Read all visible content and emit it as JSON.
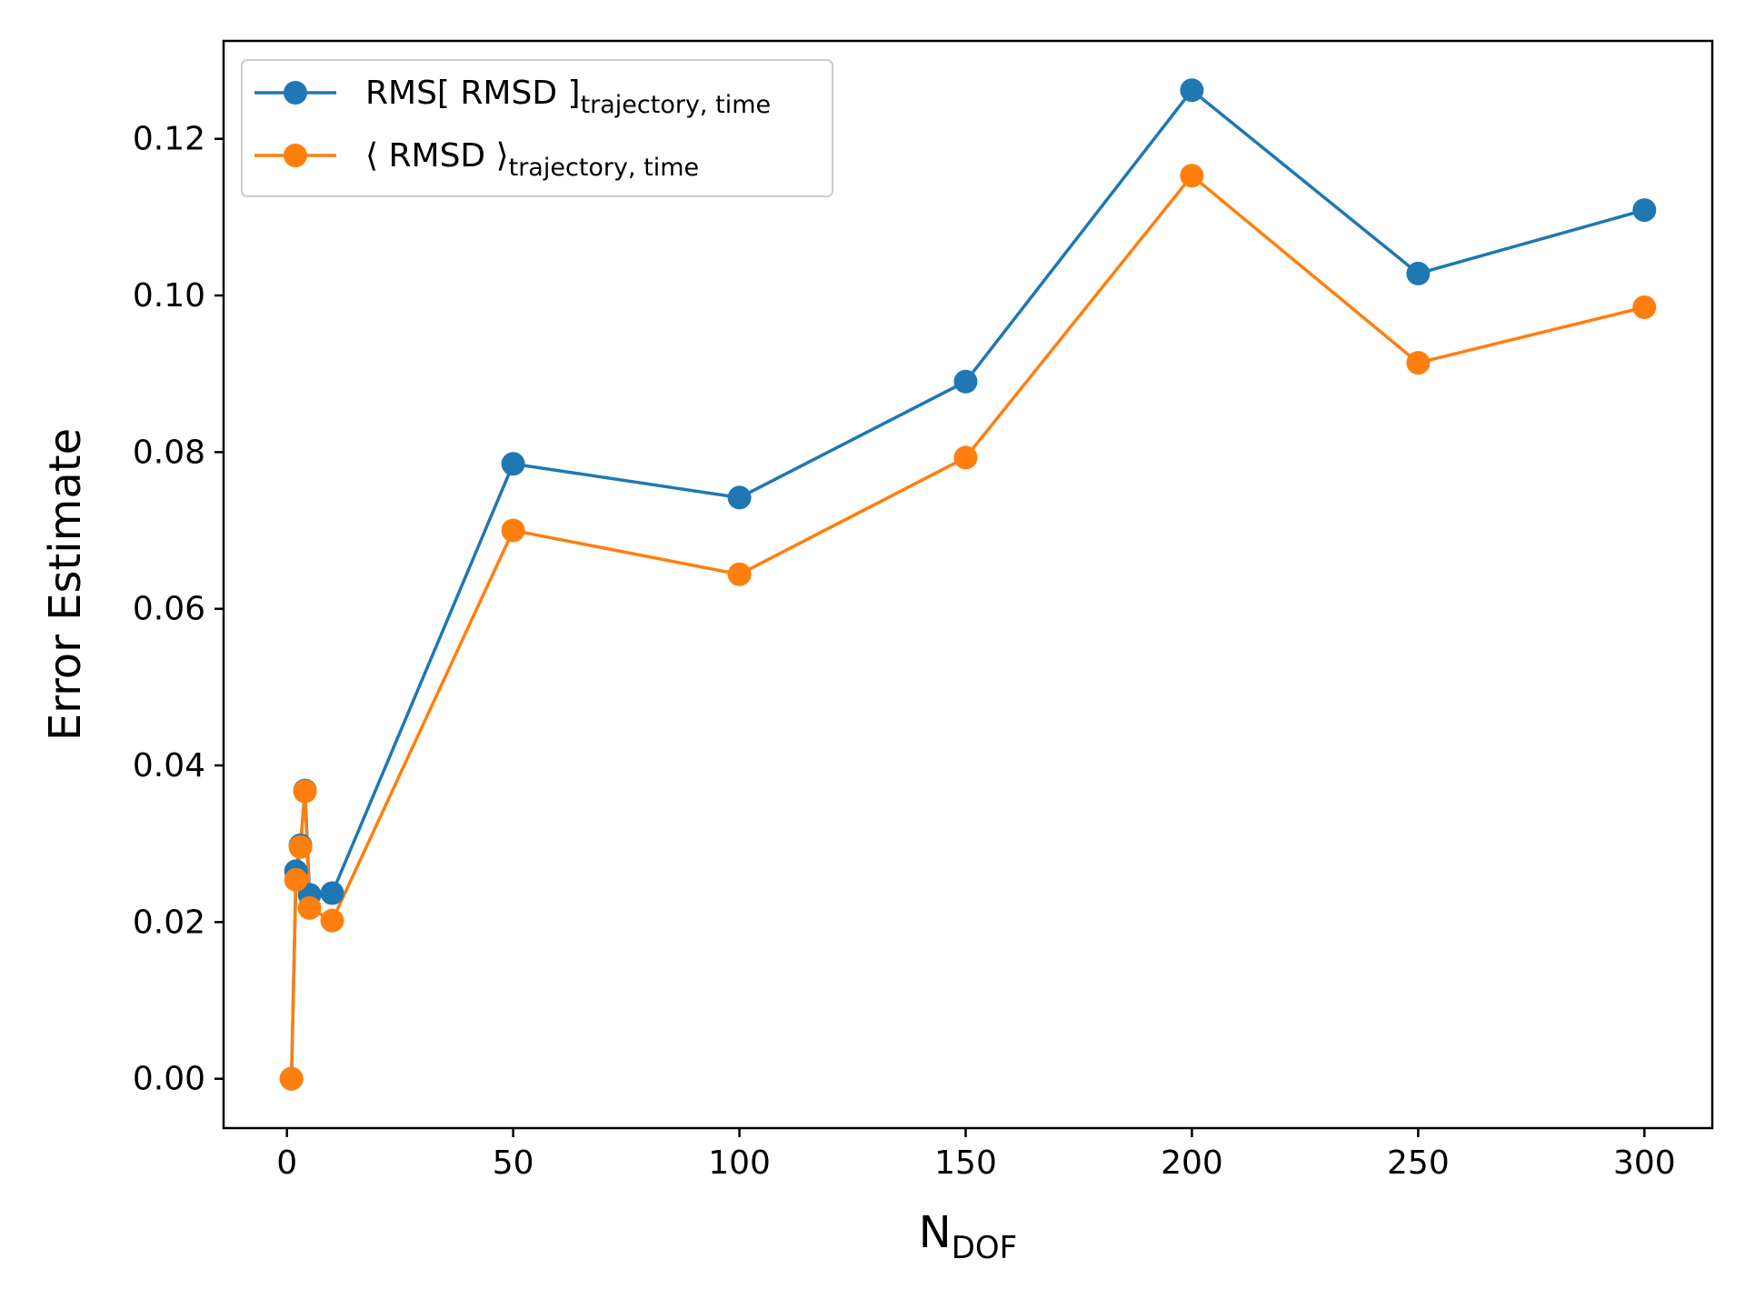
{
  "chart_data": {
    "type": "line",
    "xlabel": "N",
    "xlabel_sub": "DOF",
    "ylabel": "Error Estimate",
    "xlim": [
      -14,
      315
    ],
    "ylim": [
      -0.0063,
      0.1325
    ],
    "xticks": [
      0,
      50,
      100,
      150,
      200,
      250,
      300
    ],
    "xtick_labels": [
      "0",
      "50",
      "100",
      "150",
      "200",
      "250",
      "300"
    ],
    "yticks": [
      0.0,
      0.02,
      0.04,
      0.06,
      0.08,
      0.1,
      0.12
    ],
    "ytick_labels": [
      "0.00",
      "0.02",
      "0.04",
      "0.06",
      "0.08",
      "0.10",
      "0.12"
    ],
    "grid": false,
    "legend_position": "top-left",
    "x": [
      1,
      2,
      3,
      4,
      5,
      10,
      50,
      100,
      150,
      200,
      250,
      300
    ],
    "series": [
      {
        "name": "RMS[ RMSD ]",
        "name_sub": "trajectory, time",
        "color": "#1f77b4",
        "values": [
          0.0,
          0.0265,
          0.0298,
          0.0368,
          0.0235,
          0.0237,
          0.0785,
          0.0742,
          0.089,
          0.1262,
          0.1028,
          0.1109
        ]
      },
      {
        "name": "⟨ RMSD ⟩",
        "name_sub": "trajectory, time",
        "color": "#ff7f0e",
        "values": [
          0.0,
          0.0254,
          0.0296,
          0.0367,
          0.0218,
          0.0202,
          0.07,
          0.0644,
          0.0793,
          0.1153,
          0.0914,
          0.0985
        ]
      }
    ]
  }
}
